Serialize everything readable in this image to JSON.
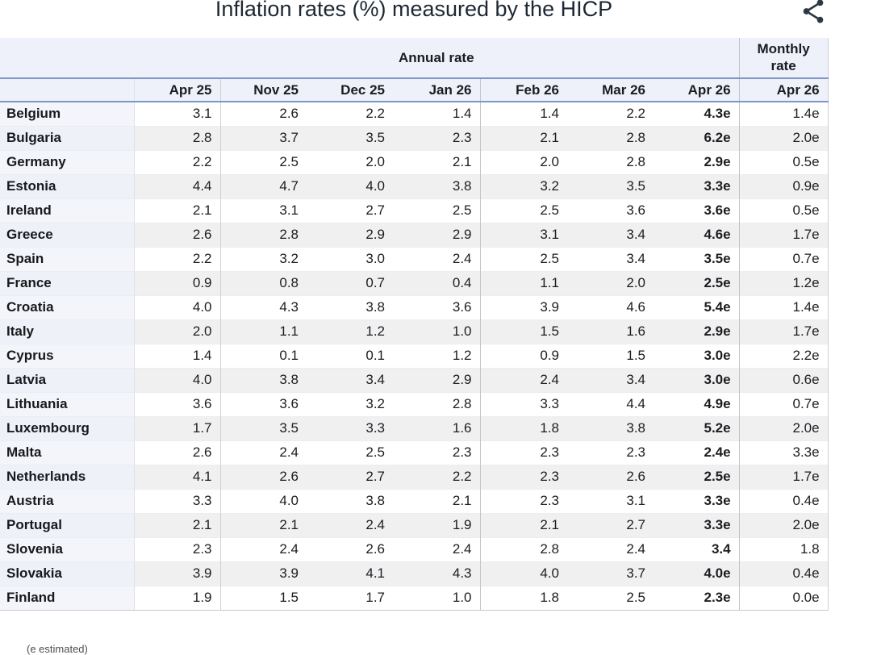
{
  "title": "Inflation rates (%) measured by the HICP",
  "icons": {
    "share": "share-nodes"
  },
  "colors": {
    "accent_blue_border": "#7d95c9",
    "header_bg": "#eef1f9",
    "name_col_bg": "#f4f5fb",
    "alt_row_bg": "#f0f0f1",
    "title_text": "#1d2733"
  },
  "footnote": "(e estimated)",
  "chart_data": {
    "type": "table",
    "title": "Inflation rates (%) measured by the HICP",
    "groups": {
      "annual": "Annual rate",
      "monthly": "Monthly rate"
    },
    "annual_columns": [
      "Apr 25",
      "Nov 25",
      "Dec 25",
      "Jan 26",
      "Feb 26",
      "Mar 26",
      "Apr 26"
    ],
    "monthly_column": "Apr 26",
    "rows": [
      {
        "country": "Belgium",
        "annual": [
          "3.1",
          "2.6",
          "2.2",
          "1.4",
          "1.4",
          "2.2",
          "4.3e"
        ],
        "monthly": "1.4e"
      },
      {
        "country": "Bulgaria",
        "annual": [
          "2.8",
          "3.7",
          "3.5",
          "2.3",
          "2.1",
          "2.8",
          "6.2e"
        ],
        "monthly": "2.0e"
      },
      {
        "country": "Germany",
        "annual": [
          "2.2",
          "2.5",
          "2.0",
          "2.1",
          "2.0",
          "2.8",
          "2.9e"
        ],
        "monthly": "0.5e"
      },
      {
        "country": "Estonia",
        "annual": [
          "4.4",
          "4.7",
          "4.0",
          "3.8",
          "3.2",
          "3.5",
          "3.3e"
        ],
        "monthly": "0.9e"
      },
      {
        "country": "Ireland",
        "annual": [
          "2.1",
          "3.1",
          "2.7",
          "2.5",
          "2.5",
          "3.6",
          "3.6e"
        ],
        "monthly": "0.5e"
      },
      {
        "country": "Greece",
        "annual": [
          "2.6",
          "2.8",
          "2.9",
          "2.9",
          "3.1",
          "3.4",
          "4.6e"
        ],
        "monthly": "1.7e"
      },
      {
        "country": "Spain",
        "annual": [
          "2.2",
          "3.2",
          "3.0",
          "2.4",
          "2.5",
          "3.4",
          "3.5e"
        ],
        "monthly": "0.7e"
      },
      {
        "country": "France",
        "annual": [
          "0.9",
          "0.8",
          "0.7",
          "0.4",
          "1.1",
          "2.0",
          "2.5e"
        ],
        "monthly": "1.2e"
      },
      {
        "country": "Croatia",
        "annual": [
          "4.0",
          "4.3",
          "3.8",
          "3.6",
          "3.9",
          "4.6",
          "5.4e"
        ],
        "monthly": "1.4e"
      },
      {
        "country": "Italy",
        "annual": [
          "2.0",
          "1.1",
          "1.2",
          "1.0",
          "1.5",
          "1.6",
          "2.9e"
        ],
        "monthly": "1.7e"
      },
      {
        "country": "Cyprus",
        "annual": [
          "1.4",
          "0.1",
          "0.1",
          "1.2",
          "0.9",
          "1.5",
          "3.0e"
        ],
        "monthly": "2.2e"
      },
      {
        "country": "Latvia",
        "annual": [
          "4.0",
          "3.8",
          "3.4",
          "2.9",
          "2.4",
          "3.4",
          "3.0e"
        ],
        "monthly": "0.6e"
      },
      {
        "country": "Lithuania",
        "annual": [
          "3.6",
          "3.6",
          "3.2",
          "2.8",
          "3.3",
          "4.4",
          "4.9e"
        ],
        "monthly": "0.7e"
      },
      {
        "country": "Luxembourg",
        "annual": [
          "1.7",
          "3.5",
          "3.3",
          "1.6",
          "1.8",
          "3.8",
          "5.2e"
        ],
        "monthly": "2.0e"
      },
      {
        "country": "Malta",
        "annual": [
          "2.6",
          "2.4",
          "2.5",
          "2.3",
          "2.3",
          "2.3",
          "2.4e"
        ],
        "monthly": "3.3e"
      },
      {
        "country": "Netherlands",
        "annual": [
          "4.1",
          "2.6",
          "2.7",
          "2.2",
          "2.3",
          "2.6",
          "2.5e"
        ],
        "monthly": "1.7e"
      },
      {
        "country": "Austria",
        "annual": [
          "3.3",
          "4.0",
          "3.8",
          "2.1",
          "2.3",
          "3.1",
          "3.3e"
        ],
        "monthly": "0.4e"
      },
      {
        "country": "Portugal",
        "annual": [
          "2.1",
          "2.1",
          "2.4",
          "1.9",
          "2.1",
          "2.7",
          "3.3e"
        ],
        "monthly": "2.0e"
      },
      {
        "country": "Slovenia",
        "annual": [
          "2.3",
          "2.4",
          "2.6",
          "2.4",
          "2.8",
          "2.4",
          "3.4"
        ],
        "monthly": "1.8"
      },
      {
        "country": "Slovakia",
        "annual": [
          "3.9",
          "3.9",
          "4.1",
          "4.3",
          "4.0",
          "3.7",
          "4.0e"
        ],
        "monthly": "0.4e"
      },
      {
        "country": "Finland",
        "annual": [
          "1.9",
          "1.5",
          "1.7",
          "1.0",
          "1.8",
          "2.5",
          "2.3e"
        ],
        "monthly": "0.0e"
      }
    ]
  }
}
